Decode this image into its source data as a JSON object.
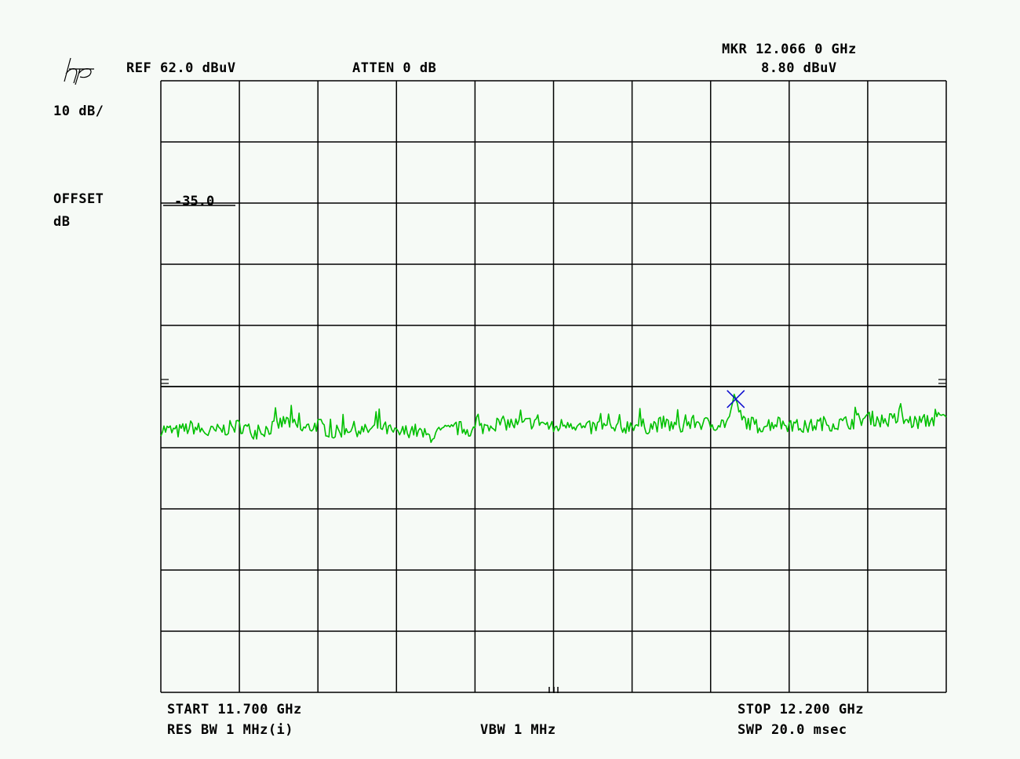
{
  "header": {
    "ref_level": "REF 62.0 dBuV",
    "atten": "ATTEN 0 dB",
    "marker_freq": "MKR 12.066 0 GHz",
    "marker_level": "8.80 dBuV"
  },
  "left_panel": {
    "scale": "10 dB/",
    "offset_label": "OFFSET",
    "offset_unit": "dB",
    "offset_value": "-35.0"
  },
  "footer": {
    "start": "START 11.700 GHz",
    "res_bw": "RES BW 1 MHz(i)",
    "vbw": "VBW 1 MHz",
    "stop": "STOP 12.200 GHz",
    "sweep": "SWP 20.0 msec"
  },
  "logo": {
    "name": "hp-logo"
  },
  "colors": {
    "trace": "#00c000",
    "marker": "#1010d0",
    "grid": "#000000",
    "background": "#f6faf6"
  },
  "chart_data": {
    "type": "line",
    "x_unit": "GHz",
    "y_unit": "dBuV",
    "xlim": [
      11.7,
      12.2
    ],
    "ylim": [
      -38.0,
      62.0
    ],
    "grid": true,
    "threshold_level": 12.0,
    "marker": {
      "x": 12.066,
      "y": 8.8
    },
    "series": [
      {
        "x": [
          11.7,
          11.71,
          11.72,
          11.73,
          11.74,
          11.75,
          11.76,
          11.77,
          11.78,
          11.79,
          11.8,
          11.81,
          11.82,
          11.83,
          11.84,
          11.85,
          11.86,
          11.87,
          11.88,
          11.89,
          11.9,
          11.91,
          11.92,
          11.93,
          11.94,
          11.95,
          11.96,
          11.97,
          11.98,
          11.99,
          12.0,
          12.01,
          12.02,
          12.03,
          12.04,
          12.05,
          12.06,
          12.066,
          12.07,
          12.08,
          12.09,
          12.1,
          12.11,
          12.12,
          12.13,
          12.14,
          12.15,
          12.16,
          12.17,
          12.18,
          12.19,
          12.2
        ],
        "y": [
          5.1,
          4.6,
          5.4,
          4.4,
          5.0,
          5.6,
          4.5,
          5.2,
          6.4,
          4.9,
          5.8,
          4.3,
          5.3,
          4.7,
          5.5,
          4.2,
          5.0,
          3.8,
          4.6,
          5.2,
          4.8,
          5.9,
          6.0,
          5.7,
          6.5,
          5.1,
          6.3,
          5.0,
          5.6,
          4.8,
          5.9,
          5.4,
          6.0,
          5.3,
          6.2,
          5.8,
          6.1,
          8.8,
          6.6,
          5.5,
          6.0,
          5.8,
          5.3,
          6.0,
          5.9,
          6.2,
          7.0,
          6.4,
          6.7,
          6.1,
          6.5,
          7.0
        ]
      }
    ]
  }
}
